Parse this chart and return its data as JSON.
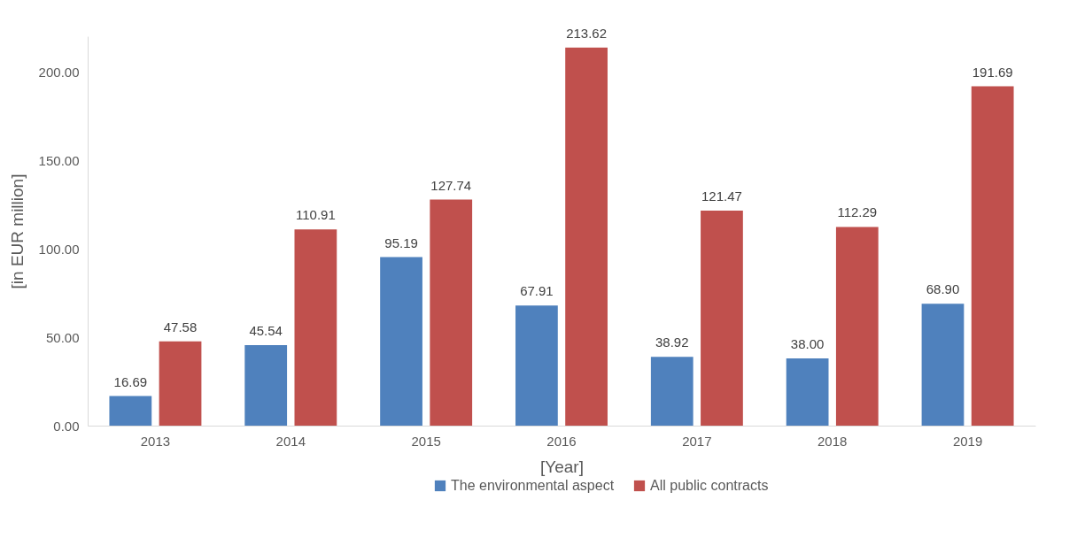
{
  "chart_data": {
    "type": "bar",
    "xlabel": "[Year]",
    "ylabel": "[in EUR million]",
    "categories": [
      "2013",
      "2014",
      "2015",
      "2016",
      "2017",
      "2018",
      "2019"
    ],
    "series": [
      {
        "name": "The environmental aspect",
        "color": "#4f81bd",
        "values": [
          16.69,
          45.54,
          95.19,
          67.91,
          38.92,
          38.0,
          68.9
        ],
        "value_labels": [
          "16.69",
          "45.54",
          "95.19",
          "67.91",
          "38.92",
          "38.00",
          "68.90"
        ]
      },
      {
        "name": "All public contracts",
        "color": "#c0504d",
        "values": [
          47.58,
          110.91,
          127.74,
          213.62,
          121.47,
          112.29,
          191.69
        ],
        "value_labels": [
          "47.58",
          "110.91",
          "127.74",
          "213.62",
          "121.47",
          "112.29",
          "191.69"
        ]
      }
    ],
    "ylim": [
      0,
      220
    ],
    "yticks": [
      {
        "value": 0,
        "label": "0.00"
      },
      {
        "value": 50,
        "label": "50.00"
      },
      {
        "value": 100,
        "label": "100.00"
      },
      {
        "value": 150,
        "label": "150.00"
      },
      {
        "value": 200,
        "label": "200.00"
      }
    ],
    "grid": false,
    "legend": "bottom"
  }
}
